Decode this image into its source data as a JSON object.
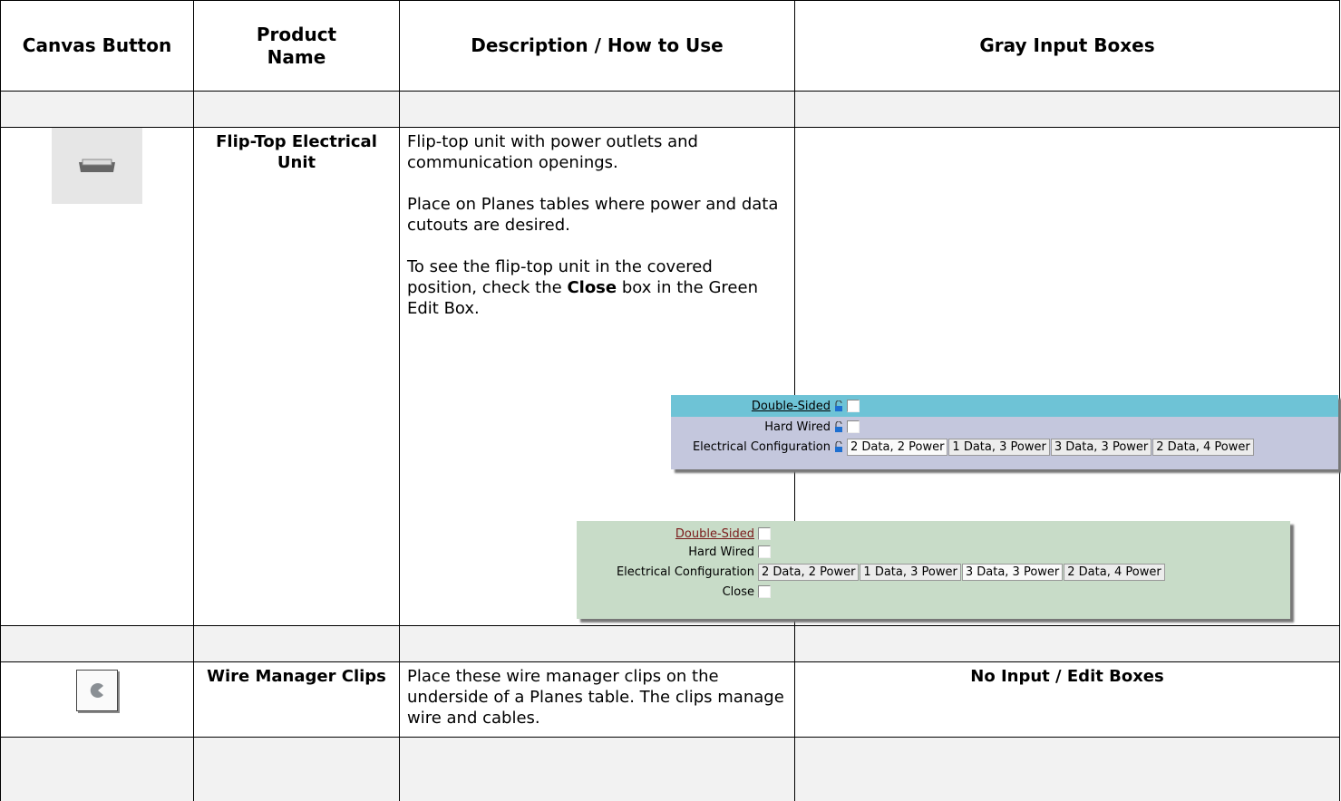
{
  "header": {
    "columns": [
      "Canvas Button",
      "Product Name",
      "Description / How to Use",
      "Gray Input Boxes"
    ]
  },
  "rows": [
    {
      "name": "Flip-Top Electrical Unit",
      "description": [
        "Flip-top unit with power outlets and communication openings.",
        "Place on Planes tables where power and data cutouts are desired."
      ],
      "note": [
        "To see the flip-top unit in the covered position, check the ",
        "Close",
        " box in the Green Edit Box."
      ],
      "gray_box": {
        "fields": [
          "Double-Sided",
          "Hard Wired",
          "Electrical Configuration"
        ],
        "options": [
          "2 Data, 2 Power",
          "1 Data, 3 Power",
          "3 Data, 3 Power",
          "2 Data, 4 Power"
        ]
      },
      "green_box": {
        "fields": [
          "Double-Sided",
          "Hard Wired",
          "Electrical Configuration",
          "Close"
        ],
        "options": [
          "2 Data, 2 Power",
          "1 Data, 3 Power",
          "3 Data, 3 Power",
          "2 Data, 4 Power"
        ]
      }
    },
    {
      "name": "Wire Manager Clips",
      "description": [
        "Place these wire manager clips on the underside of a Planes table. The clips manage wire and cables."
      ],
      "input_boxes": "No Input / Edit Boxes"
    }
  ]
}
